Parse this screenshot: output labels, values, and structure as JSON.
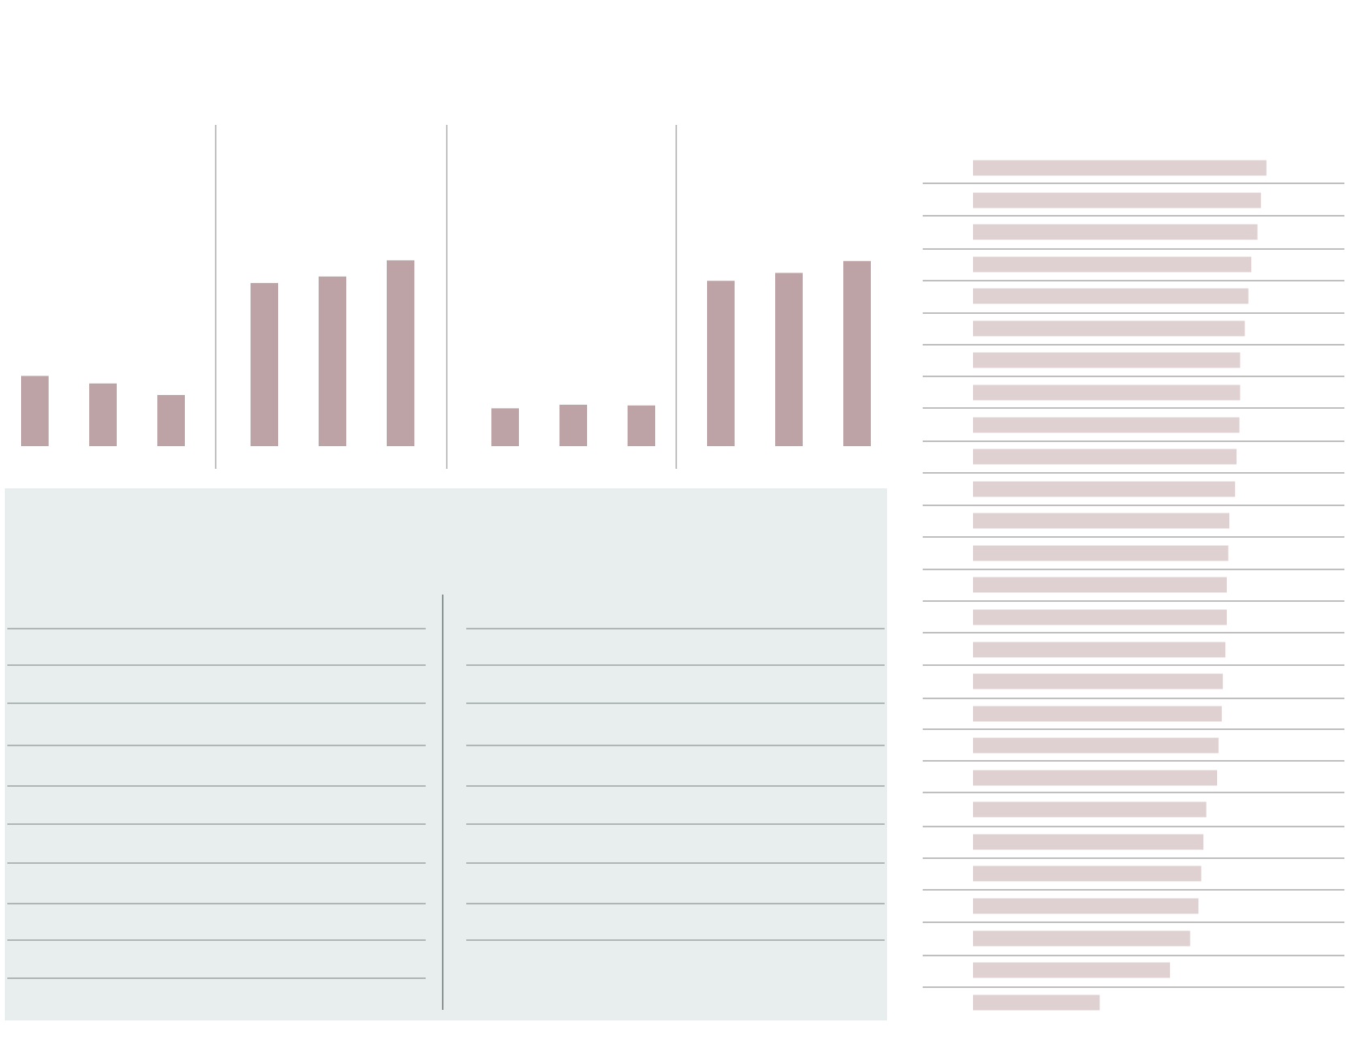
{
  "colors": {
    "bar": "#bea3a6",
    "bar_light": "#dfd0d1",
    "panel_bg": "#e8eeee",
    "rule": "#8a9494",
    "divider": "#999999"
  },
  "chart_data": [
    {
      "type": "bar",
      "title": "",
      "grid": false,
      "ylim": [
        0,
        100
      ],
      "groups": [
        {
          "values": [
            19.5,
            17.4,
            14.2
          ]
        },
        {
          "values": [
            45.3,
            47.1,
            51.6
          ]
        },
        {
          "values": [
            10.5,
            11.5,
            11.3
          ]
        },
        {
          "values": [
            45.9,
            48.1,
            51.4
          ]
        }
      ]
    },
    {
      "type": "bar",
      "orientation": "horizontal",
      "title": "",
      "grid": false,
      "xlim": [
        0,
        100
      ],
      "values": [
        81.5,
        80.0,
        79.0,
        77.3,
        76.5,
        75.5,
        74.2,
        74.2,
        74.0,
        73.2,
        72.8,
        71.2,
        70.9,
        70.5,
        70.5,
        70.1,
        69.4,
        69.1,
        68.2,
        67.8,
        64.8,
        64.0,
        63.4,
        62.6,
        60.3,
        54.7,
        35.2
      ]
    }
  ],
  "panel": {
    "left_rows": 10,
    "right_rows": 9
  }
}
